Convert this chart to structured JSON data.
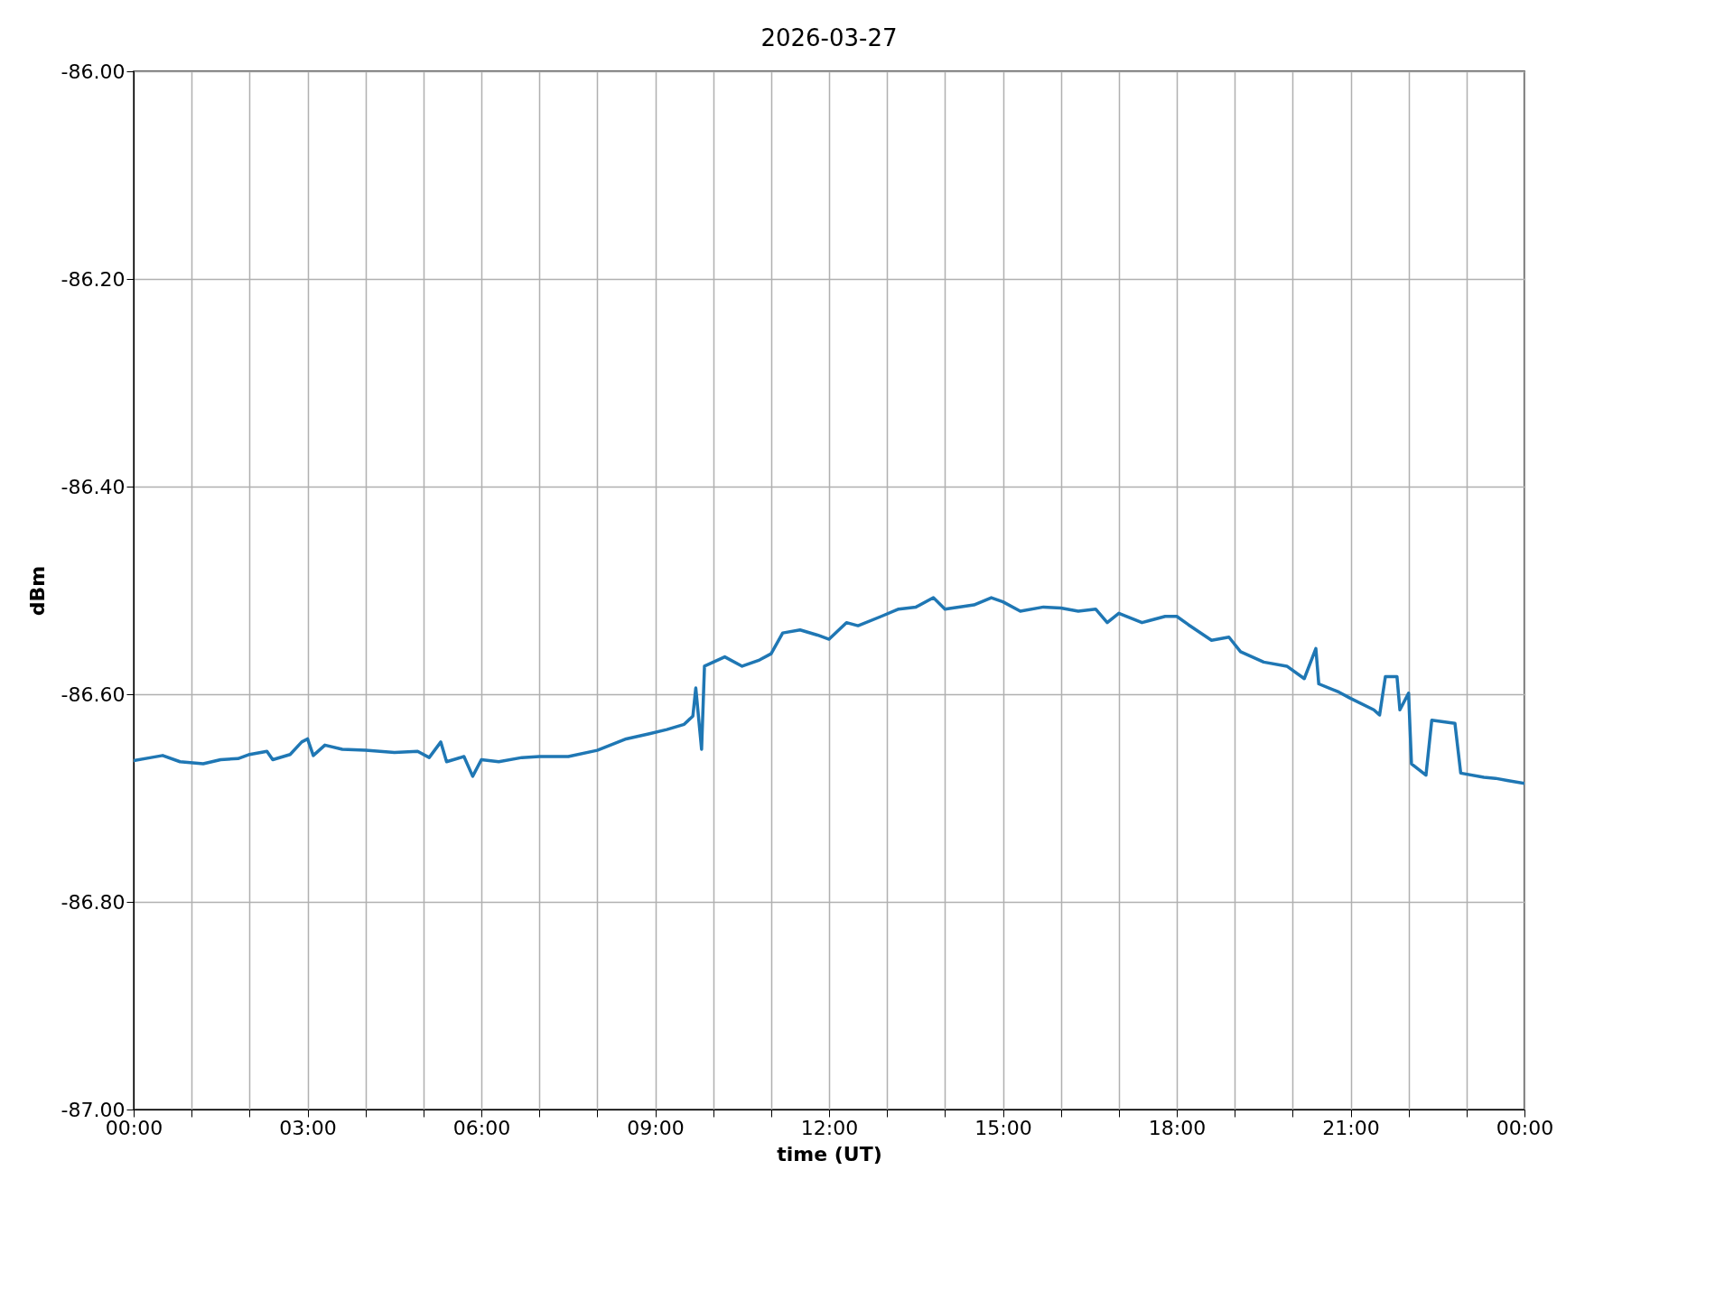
{
  "chart_data": {
    "type": "line",
    "title": "2026-03-27",
    "xlabel": "time (UT)",
    "ylabel": "dBm",
    "xlim": [
      0,
      24
    ],
    "xticks": [
      {
        "value": 0,
        "label": "00:00"
      },
      {
        "value": 1,
        "label": null
      },
      {
        "value": 2,
        "label": null
      },
      {
        "value": 3,
        "label": "03:00"
      },
      {
        "value": 4,
        "label": null
      },
      {
        "value": 5,
        "label": null
      },
      {
        "value": 6,
        "label": "06:00"
      },
      {
        "value": 7,
        "label": null
      },
      {
        "value": 8,
        "label": null
      },
      {
        "value": 9,
        "label": "09:00"
      },
      {
        "value": 10,
        "label": null
      },
      {
        "value": 11,
        "label": null
      },
      {
        "value": 12,
        "label": "12:00"
      },
      {
        "value": 13,
        "label": null
      },
      {
        "value": 14,
        "label": null
      },
      {
        "value": 15,
        "label": "15:00"
      },
      {
        "value": 16,
        "label": null
      },
      {
        "value": 17,
        "label": null
      },
      {
        "value": 18,
        "label": "18:00"
      },
      {
        "value": 19,
        "label": null
      },
      {
        "value": 20,
        "label": null
      },
      {
        "value": 21,
        "label": "21:00"
      },
      {
        "value": 22,
        "label": null
      },
      {
        "value": 23,
        "label": null
      },
      {
        "value": 24,
        "label": "00:00"
      }
    ],
    "ylim": [
      -87.0,
      -86.0
    ],
    "yticks": [
      {
        "value": -87.0,
        "label": "-87.00"
      },
      {
        "value": -86.8,
        "label": "-86.80"
      },
      {
        "value": -86.6,
        "label": "-86.60"
      },
      {
        "value": -86.4,
        "label": "-86.40"
      },
      {
        "value": -86.2,
        "label": "-86.20"
      },
      {
        "value": -86.0,
        "label": "-86.00"
      }
    ],
    "grid": true,
    "marker": "none",
    "line_style": "solid",
    "series": [
      {
        "color": "#1f77b4",
        "x": [
          0.0,
          0.3,
          0.5,
          0.8,
          1.2,
          1.5,
          1.8,
          2.0,
          2.3,
          2.4,
          2.7,
          2.9,
          3.0,
          3.1,
          3.3,
          3.6,
          4.0,
          4.5,
          4.9,
          5.1,
          5.3,
          5.4,
          5.7,
          5.85,
          6.0,
          6.3,
          6.7,
          7.0,
          7.5,
          8.0,
          8.5,
          8.9,
          9.2,
          9.5,
          9.65,
          9.7,
          9.8,
          9.85,
          10.2,
          10.5,
          10.8,
          11.0,
          11.2,
          11.5,
          11.8,
          12.0,
          12.3,
          12.5,
          12.9,
          13.2,
          13.5,
          13.8,
          14.0,
          14.5,
          14.8,
          15.0,
          15.3,
          15.7,
          16.0,
          16.3,
          16.6,
          16.8,
          17.0,
          17.4,
          17.8,
          18.0,
          18.2,
          18.6,
          18.9,
          19.1,
          19.5,
          19.9,
          20.2,
          20.4,
          20.45,
          20.8,
          21.0,
          21.4,
          21.5,
          21.6,
          21.8,
          21.85,
          22.0,
          22.05,
          22.3,
          22.4,
          22.8,
          22.9,
          23.3,
          23.5,
          23.7,
          24.0
        ],
        "values": [
          -86.664,
          -86.661,
          -86.659,
          -86.665,
          -86.667,
          -86.663,
          -86.662,
          -86.658,
          -86.655,
          -86.663,
          -86.658,
          -86.646,
          -86.643,
          -86.659,
          -86.649,
          -86.653,
          -86.654,
          -86.656,
          -86.655,
          -86.661,
          -86.646,
          -86.665,
          -86.66,
          -86.679,
          -86.663,
          -86.665,
          -86.661,
          -86.66,
          -86.66,
          -86.654,
          -86.643,
          -86.638,
          -86.634,
          -86.629,
          -86.621,
          -86.594,
          -86.653,
          -86.573,
          -86.564,
          -86.573,
          -86.567,
          -86.561,
          -86.541,
          -86.538,
          -86.543,
          -86.547,
          -86.531,
          -86.534,
          -86.525,
          -86.518,
          -86.516,
          -86.507,
          -86.518,
          -86.514,
          -86.507,
          -86.511,
          -86.52,
          -86.516,
          -86.517,
          -86.52,
          -86.518,
          -86.531,
          -86.522,
          -86.531,
          -86.525,
          -86.525,
          -86.533,
          -86.548,
          -86.545,
          -86.559,
          -86.569,
          -86.573,
          -86.585,
          -86.556,
          -86.59,
          -86.598,
          -86.604,
          -86.615,
          -86.62,
          -86.583,
          -86.583,
          -86.615,
          -86.599,
          -86.667,
          -86.678,
          -86.625,
          -86.628,
          -86.676,
          -86.68,
          -86.681,
          -86.683,
          -86.686
        ]
      }
    ]
  }
}
